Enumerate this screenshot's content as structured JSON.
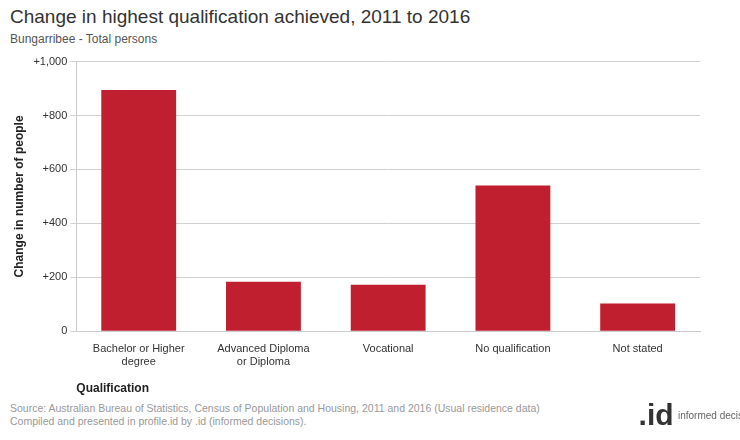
{
  "chart_data": {
    "type": "bar",
    "title": "Change in highest qualification achieved, 2011 to 2016",
    "subtitle": "Bungarribee - Total persons",
    "x_label": "Qualification",
    "y_label": "Change in number of people",
    "categories": [
      "Bachelor or Higher degree",
      "Advanced Diploma or Diploma",
      "Vocational",
      "No qualification",
      "Not stated"
    ],
    "values": [
      895,
      183,
      172,
      540,
      103
    ],
    "color": "#c01f2f",
    "ylim": [
      0,
      1000
    ],
    "yticks": [
      0,
      {
        "value": 200,
        "label": "+200"
      },
      {
        "value": 400,
        "label": "+400"
      },
      {
        "value": 600,
        "label": "+600"
      },
      {
        "value": 800,
        "label": "+800"
      },
      {
        "value": 1000,
        "label": "+1,000"
      }
    ],
    "grid": true
  },
  "source": [
    "Source: Australian Bureau of Statistics, Census of Population and Housing, 2011 and 2016 (Usual residence data)",
    "Compiled and presented in profile.id by .id (informed decisions)."
  ],
  "logo": {
    "mark": ".id",
    "text": "informed decisions"
  }
}
